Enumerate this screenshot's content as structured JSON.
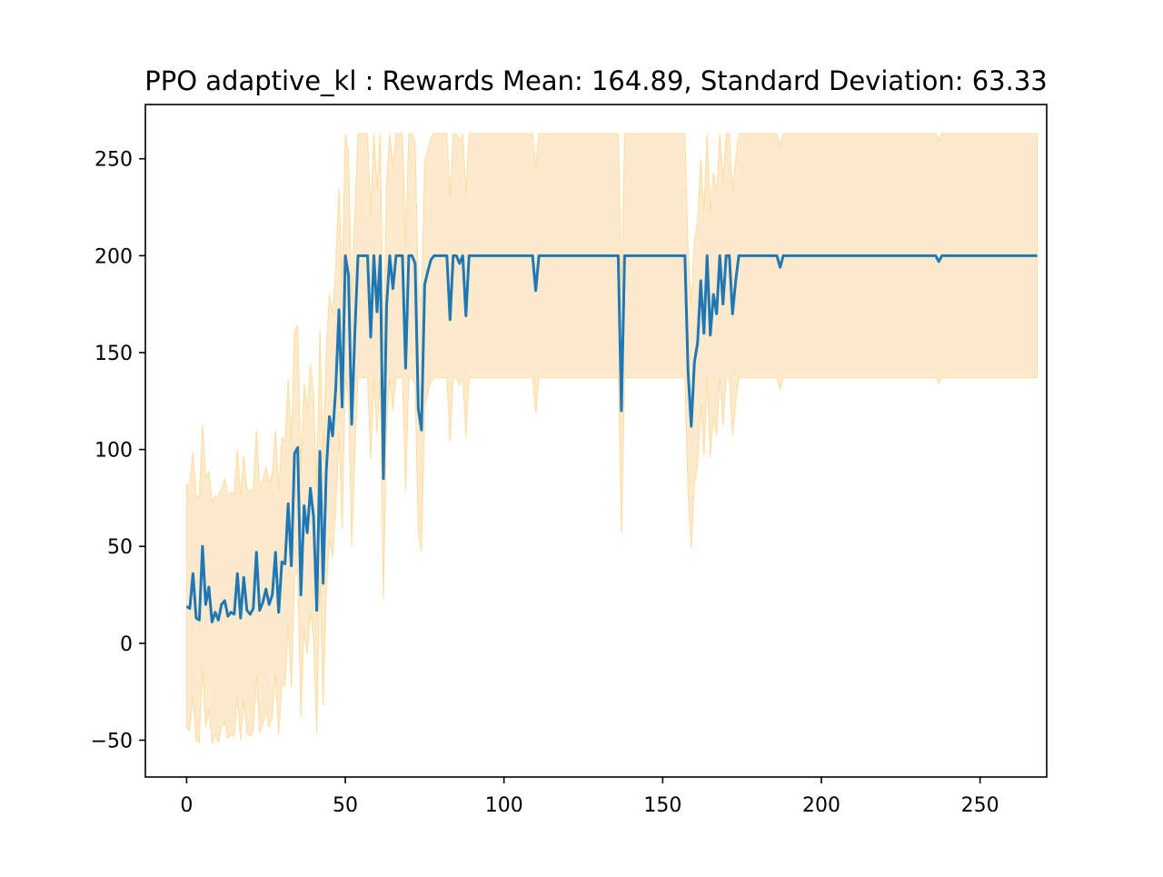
{
  "chart_data": {
    "type": "line",
    "title": "PPO adaptive_kl : Rewards Mean: 164.89, Standard Deviation: 63.33",
    "xlabel": "",
    "ylabel": "",
    "xlim": [
      -13,
      271
    ],
    "ylim": [
      -69,
      278
    ],
    "xticks": [
      0,
      50,
      100,
      150,
      200,
      250
    ],
    "yticks": [
      -50,
      0,
      50,
      100,
      150,
      200,
      250
    ],
    "grid": false,
    "legend": "none",
    "colors": {
      "line": "#1f77b4",
      "band": "#fdeacc",
      "band_edge": "#fddca0"
    },
    "series": [
      {
        "values": [
          19,
          18,
          36,
          13,
          12,
          50,
          20,
          29,
          11,
          16,
          12,
          20,
          22,
          14,
          16,
          15,
          36,
          13,
          34,
          17,
          15,
          18,
          47,
          17,
          21,
          28,
          20,
          25,
          47,
          16,
          42,
          41,
          72,
          40,
          98,
          101,
          25,
          71,
          57,
          80,
          65,
          17,
          99,
          31,
          89,
          117,
          107,
          132,
          172,
          122,
          200,
          190,
          113,
          160,
          200,
          200,
          200,
          200,
          158,
          200,
          171,
          200,
          85,
          174,
          200,
          183,
          200,
          200,
          200,
          142,
          200,
          200,
          196,
          121,
          110,
          185,
          192,
          198,
          200,
          200,
          200,
          200,
          200,
          167,
          200,
          200,
          196,
          200,
          169,
          200,
          200,
          200,
          200,
          200,
          200,
          200,
          200,
          200,
          200,
          200,
          200,
          200,
          200,
          200,
          200,
          200,
          200,
          200,
          200,
          200,
          182,
          200,
          200,
          200,
          200,
          200,
          200,
          200,
          200,
          200,
          200,
          200,
          200,
          200,
          200,
          200,
          200,
          200,
          200,
          200,
          200,
          200,
          200,
          200,
          200,
          200,
          200,
          120,
          200,
          200,
          200,
          200,
          200,
          200,
          200,
          200,
          200,
          200,
          200,
          200,
          200,
          200,
          200,
          200,
          200,
          200,
          200,
          200,
          140,
          112,
          145,
          155,
          187,
          160,
          200,
          159,
          180,
          170,
          200,
          175,
          200,
          200,
          170,
          187,
          200,
          200,
          200,
          200,
          200,
          200,
          200,
          200,
          200,
          200,
          200,
          200,
          200,
          194,
          200,
          200,
          200,
          200,
          200,
          200,
          200,
          200,
          200,
          200,
          200,
          200,
          200,
          200,
          200,
          200,
          200,
          200,
          200,
          200,
          200,
          200,
          200,
          200,
          200,
          200,
          200,
          200,
          200,
          200,
          200,
          200,
          200,
          200,
          200,
          200,
          200,
          200,
          200,
          200,
          200,
          200,
          200,
          200,
          200,
          200,
          200,
          200,
          200,
          197,
          200,
          200,
          200,
          200,
          200,
          200,
          200,
          200,
          200,
          200,
          200,
          200,
          200,
          200,
          200,
          200,
          200,
          200,
          200,
          200,
          200,
          200,
          200,
          200,
          200,
          200,
          200,
          200,
          200,
          200,
          200
        ],
        "upper": [
          82,
          82,
          99,
          76,
          76,
          113,
          85,
          89,
          73,
          76,
          76,
          80,
          85,
          76,
          78,
          77,
          100,
          76,
          97,
          80,
          78,
          81,
          110,
          80,
          84,
          91,
          83,
          88,
          110,
          79,
          106,
          104,
          136,
          104,
          161,
          164,
          88,
          134,
          120,
          144,
          128,
          80,
          162,
          94,
          152,
          180,
          170,
          195,
          235,
          185,
          263,
          253,
          176,
          223,
          263,
          263,
          263,
          263,
          221,
          263,
          234,
          263,
          148,
          237,
          263,
          246,
          263,
          263,
          263,
          205,
          263,
          263,
          259,
          184,
          173,
          248,
          255,
          261,
          263,
          263,
          263,
          263,
          263,
          230,
          263,
          263,
          259,
          263,
          232,
          263,
          263,
          263,
          263,
          263,
          263,
          263,
          263,
          263,
          263,
          263,
          263,
          263,
          263,
          263,
          263,
          263,
          263,
          263,
          263,
          263,
          245,
          263,
          263,
          263,
          263,
          263,
          263,
          263,
          263,
          263,
          263,
          263,
          263,
          263,
          263,
          263,
          263,
          263,
          263,
          263,
          263,
          263,
          263,
          263,
          263,
          263,
          263,
          183,
          263,
          263,
          263,
          263,
          263,
          263,
          263,
          263,
          263,
          263,
          263,
          263,
          263,
          263,
          263,
          263,
          263,
          263,
          263,
          263,
          203,
          175,
          208,
          218,
          250,
          223,
          263,
          222,
          243,
          233,
          263,
          238,
          263,
          263,
          233,
          250,
          263,
          263,
          263,
          263,
          263,
          263,
          263,
          263,
          263,
          263,
          263,
          263,
          263,
          257,
          263,
          263,
          263,
          263,
          263,
          263,
          263,
          263,
          263,
          263,
          263,
          263,
          263,
          263,
          263,
          263,
          263,
          263,
          263,
          263,
          263,
          263,
          263,
          263,
          263,
          263,
          263,
          263,
          263,
          263,
          263,
          263,
          263,
          263,
          263,
          263,
          263,
          263,
          263,
          263,
          263,
          263,
          263,
          263,
          263,
          263,
          263,
          263,
          263,
          260,
          263,
          263,
          263,
          263,
          263,
          263,
          263,
          263,
          263,
          263,
          263,
          263,
          263,
          263,
          263,
          263,
          263,
          263,
          263,
          263,
          263,
          263,
          263,
          263,
          263,
          263,
          263,
          263,
          263,
          263,
          263
        ],
        "lower": [
          -44,
          -45,
          -27,
          -50,
          -51,
          -13,
          -43,
          -34,
          -52,
          -47,
          -51,
          -43,
          -41,
          -49,
          -47,
          -48,
          -27,
          -50,
          -29,
          -46,
          -48,
          -45,
          -16,
          -46,
          -42,
          -35,
          -43,
          -38,
          -16,
          -47,
          -21,
          -22,
          9,
          -23,
          35,
          38,
          -38,
          8,
          -6,
          17,
          2,
          -46,
          36,
          -32,
          26,
          54,
          44,
          69,
          109,
          59,
          137,
          127,
          50,
          97,
          137,
          137,
          137,
          137,
          95,
          137,
          108,
          137,
          22,
          111,
          137,
          120,
          137,
          137,
          137,
          79,
          137,
          137,
          133,
          58,
          47,
          122,
          129,
          135,
          137,
          137,
          137,
          137,
          137,
          104,
          137,
          137,
          133,
          137,
          106,
          137,
          137,
          137,
          137,
          137,
          137,
          137,
          137,
          137,
          137,
          137,
          137,
          137,
          137,
          137,
          137,
          137,
          137,
          137,
          137,
          137,
          119,
          137,
          137,
          137,
          137,
          137,
          137,
          137,
          137,
          137,
          137,
          137,
          137,
          137,
          137,
          137,
          137,
          137,
          137,
          137,
          137,
          137,
          137,
          137,
          137,
          137,
          137,
          57,
          137,
          137,
          137,
          137,
          137,
          137,
          137,
          137,
          137,
          137,
          137,
          137,
          137,
          137,
          137,
          137,
          137,
          137,
          137,
          137,
          77,
          49,
          82,
          92,
          124,
          97,
          137,
          96,
          117,
          107,
          137,
          112,
          137,
          137,
          107,
          124,
          137,
          137,
          137,
          137,
          137,
          137,
          137,
          137,
          137,
          137,
          137,
          137,
          137,
          131,
          137,
          137,
          137,
          137,
          137,
          137,
          137,
          137,
          137,
          137,
          137,
          137,
          137,
          137,
          137,
          137,
          137,
          137,
          137,
          137,
          137,
          137,
          137,
          137,
          137,
          137,
          137,
          137,
          137,
          137,
          137,
          137,
          137,
          137,
          137,
          137,
          137,
          137,
          137,
          137,
          137,
          137,
          137,
          137,
          137,
          137,
          137,
          137,
          137,
          134,
          137,
          137,
          137,
          137,
          137,
          137,
          137,
          137,
          137,
          137,
          137,
          137,
          137,
          137,
          137,
          137,
          137,
          137,
          137,
          137,
          137,
          137,
          137,
          137,
          137,
          137,
          137,
          137,
          137,
          137,
          137
        ]
      }
    ]
  }
}
